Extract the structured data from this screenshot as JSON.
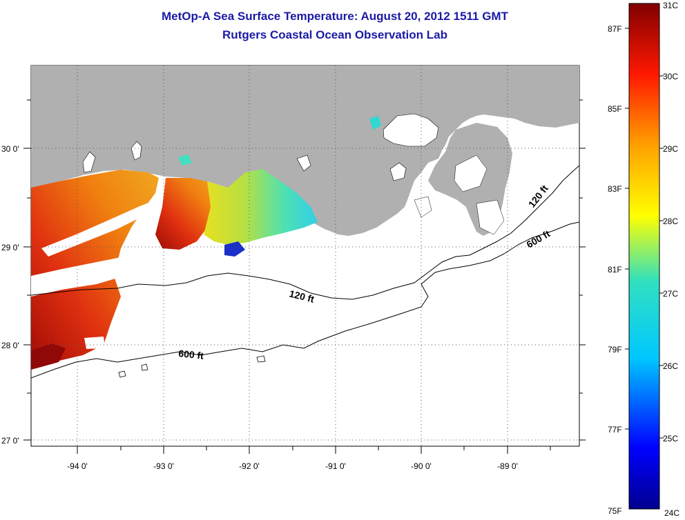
{
  "title": "MetOp-A Sea Surface Temperature:  August 20, 2012 1511 GMT",
  "subtitle": "Rutgers Coastal Ocean Observation Lab",
  "longitude_labels": [
    "-94 0'",
    "-93 0'",
    "-92 0'",
    "-91 0'",
    "-90 0'",
    "-89 0'"
  ],
  "latitude_labels": [
    "30 0'",
    "29 0'",
    "28 0'",
    "27 0'"
  ],
  "contour_labels": [
    "120 ft",
    "600 ft",
    "120 ft",
    "600 ft"
  ],
  "colorbar": {
    "celsius_labels": [
      "31C",
      "30C",
      "29C",
      "28C",
      "27C",
      "26C",
      "25C",
      "24C"
    ],
    "fahrenheit_labels": [
      "87F",
      "85F",
      "83F",
      "81F",
      "79F",
      "77F",
      "75F"
    ]
  },
  "colors": {
    "title": "#1a1aa6",
    "land": "#b0b0b0",
    "ocean_no_data": "#ffffff",
    "sst_warm": "#d01e0a",
    "sst_cool": "#2ad0c8"
  }
}
